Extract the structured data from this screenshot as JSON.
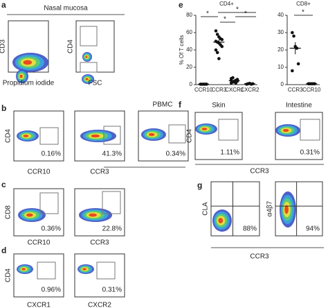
{
  "panels": {
    "a": {
      "label": "a",
      "title": "Nasal mucosa",
      "plots": [
        {
          "y_label": "CD3",
          "x_label": "Propidium iodide"
        },
        {
          "y_label": "CD4",
          "x_label": "FSC"
        }
      ]
    },
    "b": {
      "label": "b",
      "group_label": "PBMC",
      "plots": [
        {
          "y_label": "CD4",
          "x_label": "CCR10",
          "percent": "0.16%"
        },
        {
          "x_label": "CCR3",
          "percent": "41.3%"
        },
        {
          "percent": "0.34%"
        }
      ]
    },
    "c": {
      "label": "c",
      "plots": [
        {
          "y_label": "CD8",
          "x_label": "CCR10",
          "percent": "0.36%"
        },
        {
          "x_label": "CCR3",
          "percent": "22.8%"
        }
      ]
    },
    "d": {
      "label": "d",
      "plots": [
        {
          "y_label": "CD4",
          "x_label": "CXCR1",
          "percent": "0.96%"
        },
        {
          "x_label": "CXCR2",
          "percent": "0.31%"
        }
      ]
    },
    "f": {
      "label": "f",
      "x_label": "CCR3",
      "plots": [
        {
          "title": "Skin",
          "y_label": "CD4",
          "percent": "1.11%"
        },
        {
          "title": "Intestine",
          "percent": "0.31%"
        }
      ]
    },
    "g": {
      "label": "g",
      "x_label": "CCR3",
      "plots": [
        {
          "y_label": "CLA",
          "percent": "88%"
        },
        {
          "y_label": "α4β7",
          "percent": "94%"
        }
      ]
    }
  },
  "chart_data": [
    {
      "type": "strip",
      "panel_label": "e",
      "title": "CD4+",
      "y_label": "% Of T cells",
      "categories": [
        "CCR10",
        "CCR3",
        "CXCR1",
        "CXCR2"
      ],
      "values": [
        [
          0.5,
          0.5,
          0.5,
          0.5,
          0.5
        ],
        [
          62,
          58,
          55,
          53,
          52,
          50,
          49,
          48,
          46,
          44,
          40,
          37,
          30
        ],
        [
          2,
          3,
          4,
          5,
          6,
          7,
          8,
          3,
          2,
          4,
          5
        ],
        [
          0.5,
          1,
          1.5,
          0.5,
          1
        ]
      ],
      "means": [
        0.5,
        49,
        4.5,
        1
      ],
      "errors": [
        0.1,
        3,
        0.7,
        0.2
      ],
      "ylim": [
        0,
        80
      ],
      "yticks": [
        0,
        20,
        40,
        60,
        80
      ],
      "annotations": [
        "*",
        "*",
        "*",
        "*"
      ]
    },
    {
      "type": "strip",
      "title": "CD8+",
      "categories": [
        "CCR3",
        "CCR10"
      ],
      "values": [
        [
          30,
          28,
          22,
          21,
          12,
          8
        ],
        [
          0.5,
          0.5,
          0.5,
          0.5,
          0.5,
          0.5
        ]
      ],
      "means": [
        21,
        0.5
      ],
      "errors": [
        3.5,
        0.1
      ],
      "ylim": [
        0,
        40
      ],
      "yticks": [
        0,
        10,
        20,
        30,
        40
      ],
      "annotations": [
        "*"
      ]
    }
  ]
}
